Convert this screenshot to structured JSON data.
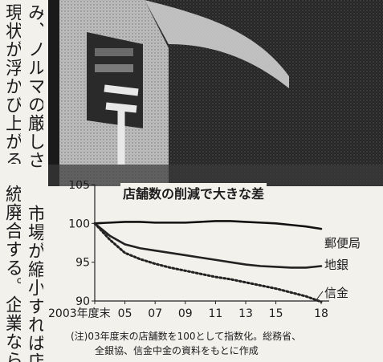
{
  "article": {
    "columns": [
      "み、ノルマの厳しさが増す",
      "現状が浮かび上がる。",
      "統廃合する。企業なら当然",
      "市場が縮小すれば店舗を"
    ]
  },
  "chart_data": {
    "type": "line",
    "title": "店舗数の削減で大きな差",
    "x_tick_labels": [
      "2003年度末",
      "05",
      "07",
      "09",
      "11",
      "13",
      "15",
      "18"
    ],
    "y_ticks": [
      90,
      95,
      100,
      105
    ],
    "ylim": [
      90,
      105
    ],
    "x": [
      2003,
      2004,
      2005,
      2006,
      2007,
      2008,
      2009,
      2010,
      2011,
      2012,
      2013,
      2014,
      2015,
      2016,
      2017,
      2018
    ],
    "series": [
      {
        "name": "郵便局",
        "style": "solid",
        "color": "#111111",
        "values": [
          100,
          100.1,
          100.2,
          100.2,
          100.1,
          100.1,
          100.1,
          100.2,
          100.3,
          100.3,
          100.2,
          100.1,
          100.0,
          99.8,
          99.6,
          99.3
        ]
      },
      {
        "name": "地銀",
        "style": "solid",
        "color": "#222222",
        "values": [
          100,
          98.4,
          97.3,
          96.8,
          96.5,
          96.2,
          95.9,
          95.6,
          95.3,
          95.0,
          94.7,
          94.5,
          94.4,
          94.3,
          94.3,
          94.5
        ]
      },
      {
        "name": "信金",
        "style": "dotted",
        "color": "#222222",
        "values": [
          100,
          97.9,
          96.2,
          95.4,
          94.8,
          94.3,
          93.9,
          93.5,
          93.1,
          92.8,
          92.4,
          92.0,
          91.6,
          91.1,
          90.6,
          89.9
        ]
      }
    ],
    "note_lines": [
      "(注)03年度末の店舗数を100として指数化。総務省、",
      "全銀協、信金中金の資料をもとに作成"
    ]
  }
}
